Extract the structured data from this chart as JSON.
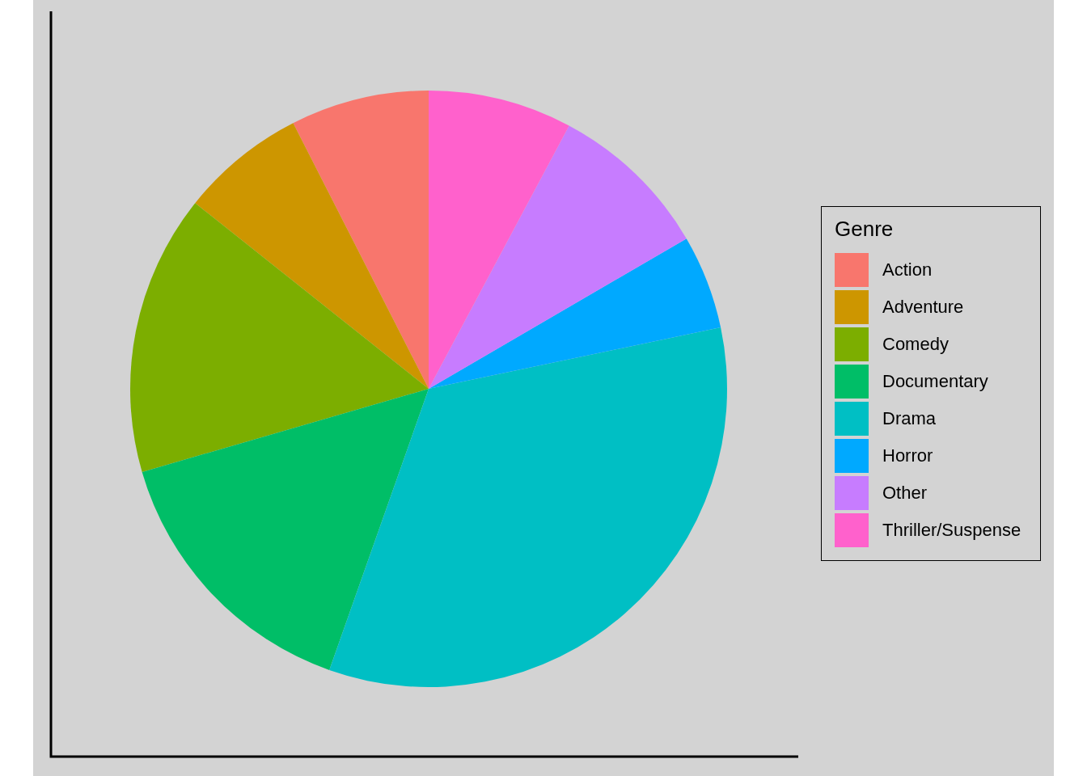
{
  "chart_data": {
    "type": "pie",
    "legend_title": "Genre",
    "legend": "right",
    "categories": [
      "Action",
      "Adventure",
      "Comedy",
      "Documentary",
      "Drama",
      "Horror",
      "Other",
      "Thriller/Suspense"
    ],
    "values": [
      7.5,
      6.8,
      15.2,
      15.1,
      33.7,
      5.1,
      8.8,
      7.8
    ],
    "colors": [
      "#f8766d",
      "#cd9600",
      "#7cae00",
      "#00be67",
      "#00bfc4",
      "#00a9ff",
      "#c77cff",
      "#ff61cc"
    ]
  }
}
